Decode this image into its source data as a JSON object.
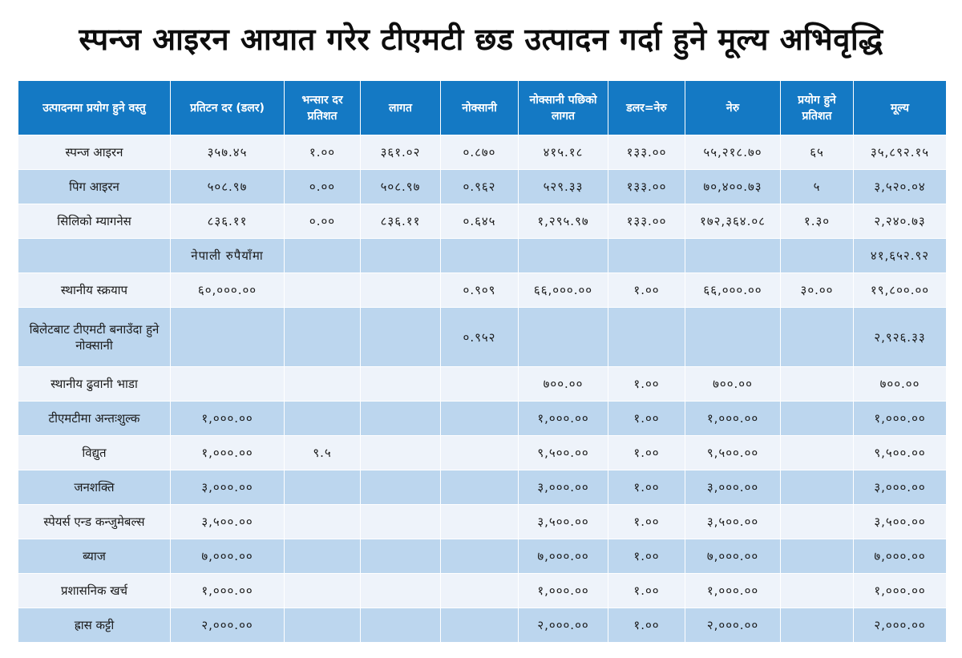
{
  "title": "स्पन्ज आइरन आयात गरेर टीएमटी छड उत्पादन गर्दा हुने मूल्य अभिवृद्धि",
  "columns": [
    "उत्पादनमा प्रयोग हुने वस्तु",
    "प्रतिटन दर (डलर)",
    "भन्सार दर प्रतिशत",
    "लागत",
    "नोक्सानी",
    "नोक्सानी पछिको लागत",
    "डलर=नेरु",
    "नेरु",
    "प्रयोग हुने प्रतिशत",
    "मूल्य"
  ],
  "rows": [
    [
      "स्पन्ज आइरन",
      "३५७.४५",
      "१.००",
      "३६१.०२",
      "०.८७०",
      "४१५.१८",
      "१३३.००",
      "५५,२१८.७०",
      "६५",
      "३५,८९२.१५"
    ],
    [
      "पिग आइरन",
      "५०८.९७",
      "०.००",
      "५०८.९७",
      "०.९६२",
      "५२९.३३",
      "१३३.००",
      "७०,४००.७३",
      "५",
      "३,५२०.०४"
    ],
    [
      "सिलिको म्यागनेस",
      "८३६.११",
      "०.००",
      "८३६.११",
      "०.६४५",
      "१,२९५.९७",
      "१३३.००",
      "१७२,३६४.०८",
      "१.३०",
      "२,२४०.७३"
    ],
    [
      "",
      "नेपाली रुपैयाँमा",
      "",
      "",
      "",
      "",
      "",
      "",
      "",
      "४१,६५२.९२"
    ],
    [
      "स्थानीय स्क्रयाप",
      "६०,०००.००",
      "",
      "",
      "०.९०९",
      "६६,०००.००",
      "१.००",
      "६६,०००.००",
      "३०.००",
      "१९,८००.००"
    ],
    [
      "बिलेटबाट टीएमटी बनाउँदा हुने नोक्सानी",
      "",
      "",
      "",
      "०.९५२",
      "",
      "",
      "",
      "",
      "२,९२६.३३"
    ],
    [
      "स्थानीय ढुवानी भाडा",
      "",
      "",
      "",
      "",
      "७००.००",
      "१.००",
      "७००.००",
      "",
      "७००.००"
    ],
    [
      "टीएमटीमा अन्तःशुल्क",
      "१,०००.००",
      "",
      "",
      "",
      "१,०००.००",
      "१.००",
      "१,०००.००",
      "",
      "१,०००.००"
    ],
    [
      "विद्युत",
      "१,०००.००",
      "९.५",
      "",
      "",
      "९,५००.००",
      "१.००",
      "९,५००.००",
      "",
      "९,५००.००"
    ],
    [
      "जनशक्ति",
      "३,०००.००",
      "",
      "",
      "",
      "३,०००.००",
      "१.००",
      "३,०००.००",
      "",
      "३,०००.००"
    ],
    [
      "स्पेयर्स एन्ड कन्जुमेबल्स",
      "३,५००.००",
      "",
      "",
      "",
      "३,५००.००",
      "१.००",
      "३,५००.००",
      "",
      "३,५००.००"
    ],
    [
      "ब्याज",
      "७,०००.००",
      "",
      "",
      "",
      "७,०००.००",
      "१.००",
      "७,०००.००",
      "",
      "७,०००.००"
    ],
    [
      "प्रशासनिक खर्च",
      "१,०००.००",
      "",
      "",
      "",
      "१,०००.००",
      "१.००",
      "१,०००.००",
      "",
      "१,०००.००"
    ],
    [
      "ह्रास कट्टी",
      "२,०००.००",
      "",
      "",
      "",
      "२,०००.००",
      "१.००",
      "२,०००.००",
      "",
      "२,०००.००"
    ]
  ],
  "colors": {
    "header_bg": "#1479c4",
    "row_light": "#eef3fa",
    "row_dark": "#bcd6ee"
  }
}
